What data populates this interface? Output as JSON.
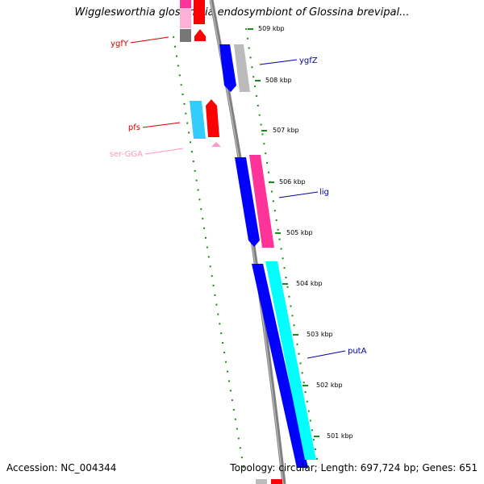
{
  "title": "Wigglesworthia glossinidia endosymbiont of Glossina brevipal...",
  "footer": {
    "accession": "Accession: NC_004344",
    "summary": "Topology: circular; Length: 697,724 bp; Genes: 651"
  },
  "ticks": [
    "509 kbp",
    "508 kbp",
    "507 kbp",
    "506 kbp",
    "505 kbp",
    "504 kbp",
    "503 kbp",
    "502 kbp",
    "501 kbp"
  ],
  "genes": [
    {
      "name": "ygfY",
      "color": "#cc0000",
      "side": "left"
    },
    {
      "name": "ygfZ",
      "color": "#0000aa",
      "side": "right"
    },
    {
      "name": "pfs",
      "color": "#cc0000",
      "side": "left"
    },
    {
      "name": "ser-GGA",
      "color": "#ff99bb",
      "side": "left"
    },
    {
      "name": "lig",
      "color": "#0000aa",
      "side": "right"
    },
    {
      "name": "putA",
      "color": "#0000aa",
      "side": "right"
    }
  ],
  "colors": {
    "backbone": "#808080",
    "dotted_guide": "#1a8a1a",
    "forward_cds": "#ff0000",
    "reverse_cds": "#0000ff",
    "cyan_cds": "#00ffff",
    "pink_cds": "#ff3399",
    "gray_cds": "#bbbbbb",
    "light_blue_cds": "#33ccff",
    "trna": "#ff99cc"
  }
}
